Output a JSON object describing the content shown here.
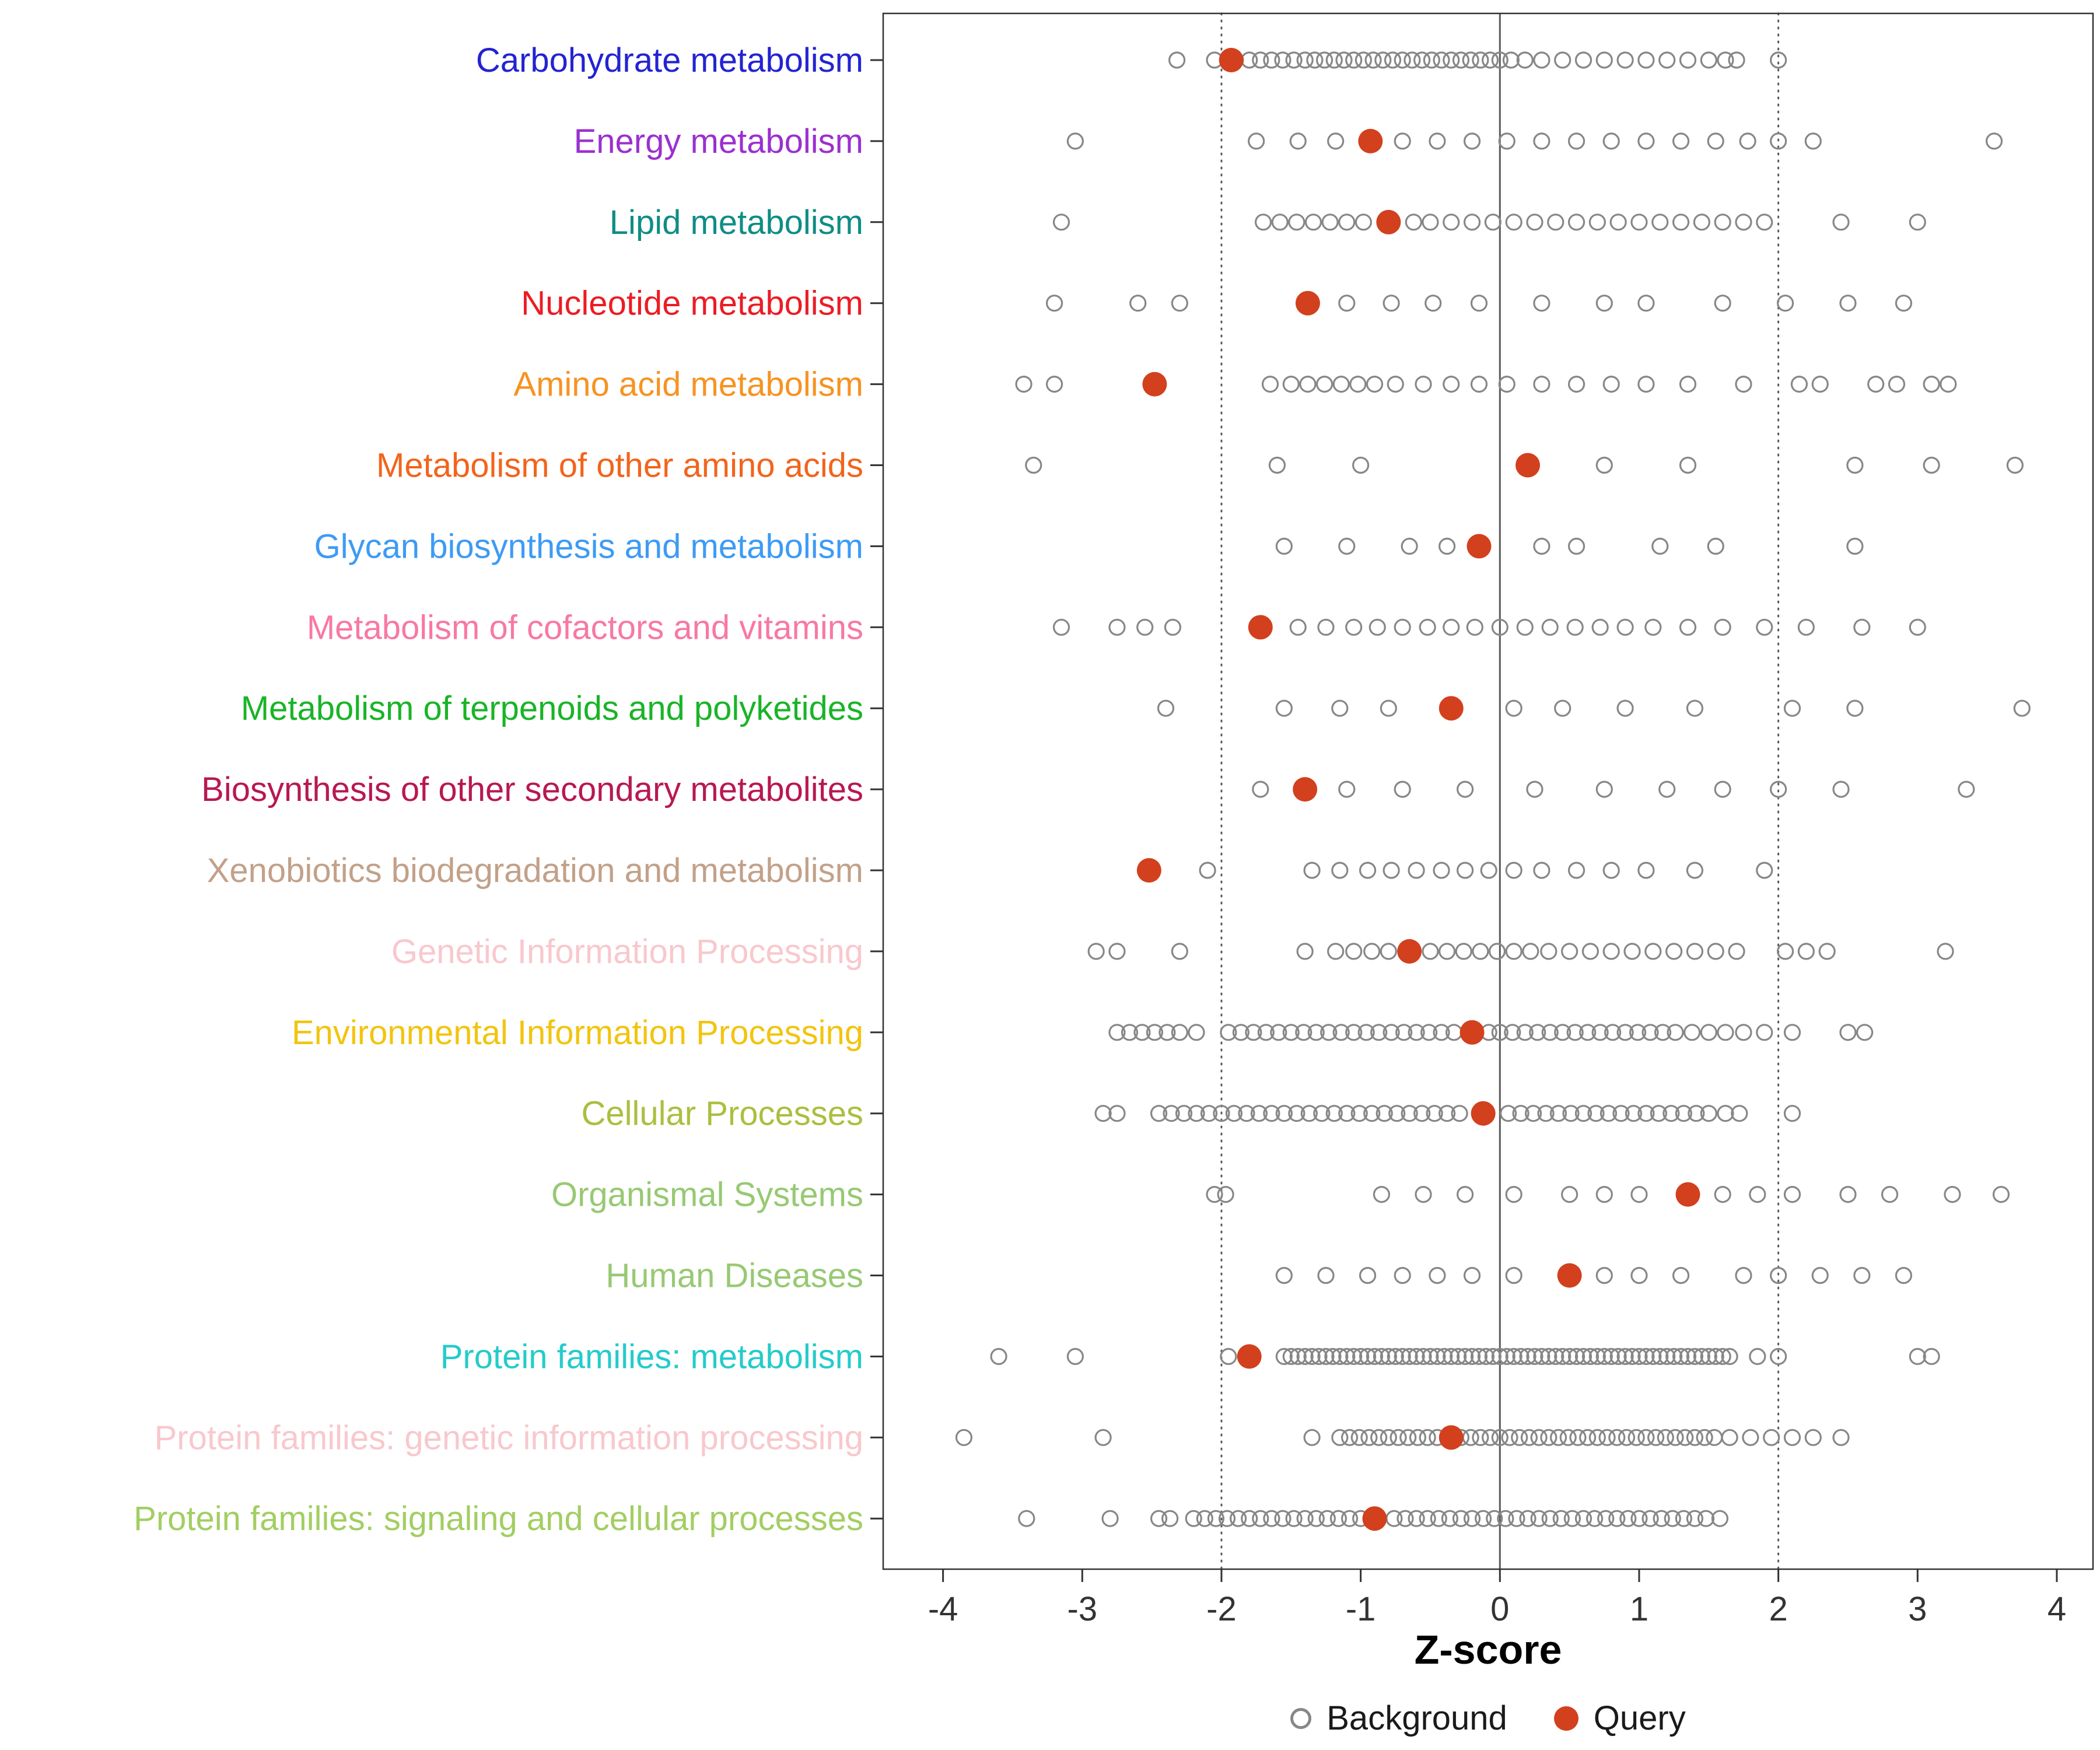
{
  "figure": {
    "background_color": "#ffffff",
    "panel_border_color": "#333333",
    "gridline_color": "#5a5a5a",
    "axis_text_color": "#333333",
    "legend": [
      {
        "label": "Background",
        "marker": "open-circle",
        "color": "#878787"
      },
      {
        "label": "Query",
        "marker": "filled-circle",
        "color": "#d2401e"
      }
    ]
  },
  "chart_data": {
    "type": "scatter",
    "subtype": "horizontal-strip-dot-plot",
    "xlabel": "Z-score",
    "xlim": [
      -4.43,
      4.26
    ],
    "xticks": [
      -4,
      -3,
      -2,
      -1,
      0,
      1,
      2,
      3,
      4
    ],
    "reference_lines": [
      {
        "x": -2,
        "style": "dotted"
      },
      {
        "x": 0,
        "style": "solid"
      },
      {
        "x": 2,
        "style": "dotted"
      }
    ],
    "legend_entries": [
      "Background",
      "Query"
    ],
    "point_style": {
      "background_stroke": "#878787",
      "query_fill": "#d2401e"
    },
    "categories": [
      {
        "label": "Carbohydrate metabolism",
        "color": "#2323d2",
        "query": -1.93,
        "background": [
          -2.32,
          -2.05,
          -1.9,
          -1.8,
          -1.72,
          -1.64,
          -1.56,
          -1.48,
          -1.4,
          -1.33,
          -1.26,
          -1.19,
          -1.12,
          -1.05,
          -0.98,
          -0.91,
          -0.84,
          -0.77,
          -0.7,
          -0.63,
          -0.56,
          -0.49,
          -0.42,
          -0.35,
          -0.28,
          -0.21,
          -0.14,
          -0.07,
          0.0,
          0.08,
          0.18,
          0.3,
          0.45,
          0.6,
          0.75,
          0.9,
          1.05,
          1.2,
          1.35,
          1.5,
          1.62,
          1.7,
          2.0
        ]
      },
      {
        "label": "Energy metabolism",
        "color": "#9b30d0",
        "query": -0.93,
        "background": [
          -3.05,
          -1.75,
          -1.45,
          -1.18,
          -0.7,
          -0.45,
          -0.2,
          0.05,
          0.3,
          0.55,
          0.8,
          1.05,
          1.3,
          1.55,
          1.78,
          2.0,
          2.25,
          3.55
        ]
      },
      {
        "label": "Lipid metabolism",
        "color": "#0f8d84",
        "query": -0.8,
        "background": [
          -3.15,
          -1.7,
          -1.58,
          -1.46,
          -1.34,
          -1.22,
          -1.1,
          -0.98,
          -0.62,
          -0.5,
          -0.35,
          -0.2,
          -0.05,
          0.1,
          0.25,
          0.4,
          0.55,
          0.7,
          0.85,
          1.0,
          1.15,
          1.3,
          1.45,
          1.6,
          1.75,
          1.9,
          2.45,
          3.0
        ]
      },
      {
        "label": "Nucleotide metabolism",
        "color": "#ec1c24",
        "query": -1.38,
        "background": [
          -3.2,
          -2.6,
          -2.3,
          -1.1,
          -0.78,
          -0.48,
          -0.15,
          0.3,
          0.75,
          1.05,
          1.6,
          2.05,
          2.5,
          2.9
        ]
      },
      {
        "label": "Amino acid metabolism",
        "color": "#f79321",
        "query": -2.48,
        "background": [
          -3.42,
          -3.2,
          -1.65,
          -1.5,
          -1.38,
          -1.26,
          -1.14,
          -1.02,
          -0.9,
          -0.75,
          -0.55,
          -0.35,
          -0.15,
          0.05,
          0.3,
          0.55,
          0.8,
          1.05,
          1.35,
          1.75,
          2.15,
          2.3,
          2.7,
          2.85,
          3.1,
          3.22
        ]
      },
      {
        "label": "Metabolism of other amino acids",
        "color": "#f2641c",
        "query": 0.2,
        "background": [
          -3.35,
          -1.6,
          -1.0,
          0.75,
          1.35,
          2.55,
          3.1,
          3.7
        ]
      },
      {
        "label": "Glycan biosynthesis and metabolism",
        "color": "#3d9bf5",
        "query": -0.15,
        "background": [
          -1.55,
          -1.1,
          -0.65,
          -0.38,
          0.3,
          0.55,
          1.15,
          1.55,
          2.55
        ]
      },
      {
        "label": "Metabolism of cofactors and vitamins",
        "color": "#f878a4",
        "query": -1.72,
        "background": [
          -3.15,
          -2.75,
          -2.55,
          -2.35,
          -1.45,
          -1.25,
          -1.05,
          -0.88,
          -0.7,
          -0.52,
          -0.35,
          -0.18,
          0.0,
          0.18,
          0.36,
          0.54,
          0.72,
          0.9,
          1.1,
          1.35,
          1.6,
          1.9,
          2.2,
          2.6,
          3.0
        ]
      },
      {
        "label": "Metabolism of terpenoids and polyketides",
        "color": "#19b427",
        "query": -0.35,
        "background": [
          -2.4,
          -1.55,
          -1.15,
          -0.8,
          0.1,
          0.45,
          0.9,
          1.4,
          2.1,
          2.55,
          3.75
        ]
      },
      {
        "label": "Biosynthesis of other secondary metabolites",
        "color": "#b81852",
        "query": -1.4,
        "background": [
          -1.72,
          -1.1,
          -0.7,
          -0.25,
          0.25,
          0.75,
          1.2,
          1.6,
          2.0,
          2.45,
          3.35
        ]
      },
      {
        "label": "Xenobiotics biodegradation and metabolism",
        "color": "#c2a189",
        "query": -2.52,
        "background": [
          -2.1,
          -1.35,
          -1.15,
          -0.95,
          -0.78,
          -0.6,
          -0.42,
          -0.25,
          -0.08,
          0.1,
          0.3,
          0.55,
          0.8,
          1.05,
          1.4,
          1.9
        ]
      },
      {
        "label": "Genetic Information Processing",
        "color": "#f8c8cd",
        "query": -0.65,
        "background": [
          -2.9,
          -2.75,
          -2.3,
          -1.4,
          -1.18,
          -1.05,
          -0.92,
          -0.8,
          -0.5,
          -0.38,
          -0.26,
          -0.14,
          -0.02,
          0.1,
          0.22,
          0.35,
          0.5,
          0.65,
          0.8,
          0.95,
          1.1,
          1.25,
          1.4,
          1.55,
          1.7,
          2.05,
          2.2,
          2.35,
          3.2
        ]
      },
      {
        "label": "Environmental Information Processing",
        "color": "#f2c40f",
        "query": -0.2,
        "background": [
          -2.75,
          -2.66,
          -2.57,
          -2.48,
          -2.39,
          -2.3,
          -2.18,
          -1.95,
          -1.86,
          -1.77,
          -1.68,
          -1.59,
          -1.5,
          -1.41,
          -1.32,
          -1.23,
          -1.14,
          -1.05,
          -0.96,
          -0.87,
          -0.78,
          -0.69,
          -0.6,
          -0.51,
          -0.42,
          -0.33,
          -0.08,
          0.0,
          0.09,
          0.18,
          0.27,
          0.36,
          0.45,
          0.54,
          0.63,
          0.72,
          0.81,
          0.9,
          0.99,
          1.08,
          1.17,
          1.26,
          1.38,
          1.5,
          1.62,
          1.75,
          1.9,
          2.1,
          2.5,
          2.62
        ]
      },
      {
        "label": "Cellular Processes",
        "color": "#a9c03f",
        "query": -0.12,
        "background": [
          -2.85,
          -2.75,
          -2.45,
          -2.36,
          -2.27,
          -2.18,
          -2.09,
          -2.0,
          -1.91,
          -1.82,
          -1.73,
          -1.64,
          -1.55,
          -1.46,
          -1.37,
          -1.28,
          -1.19,
          -1.1,
          -1.01,
          -0.92,
          -0.83,
          -0.74,
          -0.65,
          -0.56,
          -0.47,
          -0.38,
          -0.29,
          0.06,
          0.15,
          0.24,
          0.33,
          0.42,
          0.51,
          0.6,
          0.69,
          0.78,
          0.87,
          0.96,
          1.05,
          1.14,
          1.23,
          1.32,
          1.41,
          1.5,
          1.62,
          1.72,
          2.1
        ]
      },
      {
        "label": "Organismal Systems",
        "color": "#97c973",
        "query": 1.35,
        "background": [
          -2.05,
          -1.97,
          -0.85,
          -0.55,
          -0.25,
          0.1,
          0.5,
          0.75,
          1.0,
          1.6,
          1.85,
          2.1,
          2.5,
          2.8,
          3.25,
          3.6
        ]
      },
      {
        "label": "Human Diseases",
        "color": "#97c973",
        "query": 0.5,
        "background": [
          -1.55,
          -1.25,
          -0.95,
          -0.7,
          -0.45,
          -0.2,
          0.1,
          0.75,
          1.0,
          1.3,
          1.75,
          2.0,
          2.3,
          2.6,
          2.9
        ]
      },
      {
        "label": "Protein families: metabolism",
        "color": "#25cbcb",
        "query": -1.8,
        "background": [
          -3.6,
          -3.05,
          -1.95,
          -1.55,
          -1.5,
          -1.45,
          -1.4,
          -1.35,
          -1.3,
          -1.25,
          -1.2,
          -1.15,
          -1.1,
          -1.05,
          -1.0,
          -0.95,
          -0.9,
          -0.85,
          -0.8,
          -0.75,
          -0.7,
          -0.65,
          -0.6,
          -0.55,
          -0.5,
          -0.45,
          -0.4,
          -0.35,
          -0.3,
          -0.25,
          -0.2,
          -0.15,
          -0.1,
          -0.05,
          0.0,
          0.05,
          0.1,
          0.15,
          0.2,
          0.25,
          0.3,
          0.35,
          0.4,
          0.45,
          0.5,
          0.55,
          0.6,
          0.65,
          0.7,
          0.75,
          0.8,
          0.85,
          0.9,
          0.95,
          1.0,
          1.05,
          1.1,
          1.15,
          1.2,
          1.25,
          1.3,
          1.35,
          1.4,
          1.45,
          1.5,
          1.55,
          1.6,
          1.65,
          1.85,
          2.0,
          3.0,
          3.1
        ]
      },
      {
        "label": "Protein families: genetic information processing",
        "color": "#f8c8cd",
        "query": -0.35,
        "background": [
          -3.85,
          -2.85,
          -1.35,
          -1.15,
          -1.08,
          -1.01,
          -0.94,
          -0.87,
          -0.8,
          -0.73,
          -0.66,
          -0.59,
          -0.52,
          -0.45,
          -0.28,
          -0.21,
          -0.14,
          -0.07,
          0.0,
          0.07,
          0.14,
          0.21,
          0.28,
          0.35,
          0.42,
          0.49,
          0.56,
          0.63,
          0.7,
          0.77,
          0.84,
          0.91,
          0.98,
          1.05,
          1.12,
          1.19,
          1.26,
          1.33,
          1.4,
          1.47,
          1.54,
          1.65,
          1.8,
          1.95,
          2.1,
          2.25,
          2.45
        ]
      },
      {
        "label": "Protein families: signaling and cellular processes",
        "color": "#a2ce62",
        "query": -0.9,
        "background": [
          -3.4,
          -2.8,
          -2.45,
          -2.37,
          -2.2,
          -2.12,
          -2.04,
          -1.96,
          -1.88,
          -1.8,
          -1.72,
          -1.64,
          -1.56,
          -1.48,
          -1.4,
          -1.32,
          -1.24,
          -1.16,
          -1.08,
          -1.0,
          -0.76,
          -0.68,
          -0.6,
          -0.52,
          -0.44,
          -0.36,
          -0.28,
          -0.2,
          -0.12,
          -0.04,
          0.04,
          0.12,
          0.2,
          0.28,
          0.36,
          0.44,
          0.52,
          0.6,
          0.68,
          0.76,
          0.84,
          0.92,
          1.0,
          1.08,
          1.16,
          1.24,
          1.32,
          1.4,
          1.48,
          1.58
        ]
      }
    ]
  }
}
